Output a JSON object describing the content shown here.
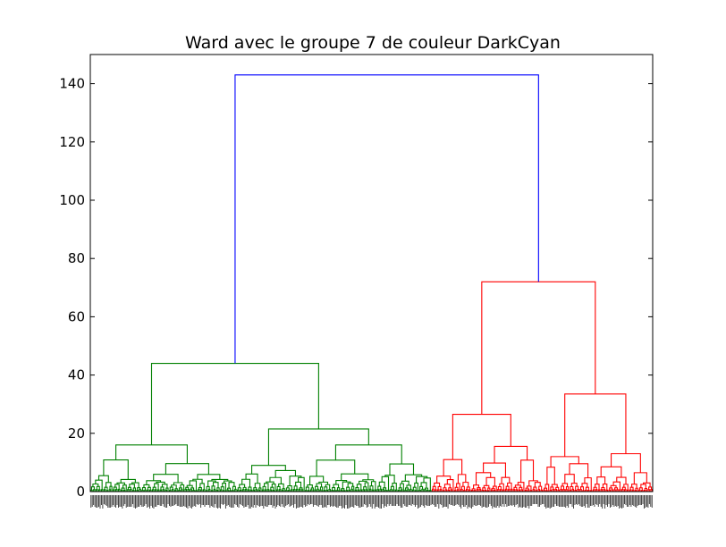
{
  "chart_data": {
    "type": "dendrogram",
    "title": "Ward avec le groupe 7 de couleur DarkCyan",
    "xlabel": "",
    "ylabel": "",
    "ylim": [
      0,
      150
    ],
    "yticks": [
      0,
      20,
      40,
      60,
      80,
      100,
      120,
      140
    ],
    "grid": false,
    "colors": {
      "root": "#0000ff",
      "cluster_1": "#008000",
      "cluster_2": "#ff0000"
    },
    "leaf_count_estimate": 430,
    "merges": [
      {
        "name": "root",
        "height": 143,
        "color": "#0000ff",
        "left": "cluster_1",
        "right": "cluster_2"
      },
      {
        "name": "cluster_1",
        "height": 44,
        "color": "#008000",
        "left": "g_a",
        "right": "g_b"
      },
      {
        "name": "g_a",
        "height": 16,
        "color": "#008000"
      },
      {
        "name": "g_b",
        "height": 21.5,
        "color": "#008000"
      },
      {
        "name": "g_b1",
        "height": 9,
        "color": "#008000"
      },
      {
        "name": "g_b2",
        "height": 16,
        "color": "#008000"
      },
      {
        "name": "cluster_2",
        "height": 72,
        "color": "#ff0000",
        "left": "r_a",
        "right": "r_b"
      },
      {
        "name": "r_a",
        "height": 26.5,
        "color": "#ff0000"
      },
      {
        "name": "r_a1",
        "height": 11,
        "color": "#ff0000"
      },
      {
        "name": "r_a2",
        "height": 15.5,
        "color": "#ff0000"
      },
      {
        "name": "r_b",
        "height": 33.5,
        "color": "#ff0000"
      },
      {
        "name": "r_b1",
        "height": 12,
        "color": "#ff0000"
      },
      {
        "name": "r_b2",
        "height": 13,
        "color": "#ff0000"
      }
    ]
  }
}
